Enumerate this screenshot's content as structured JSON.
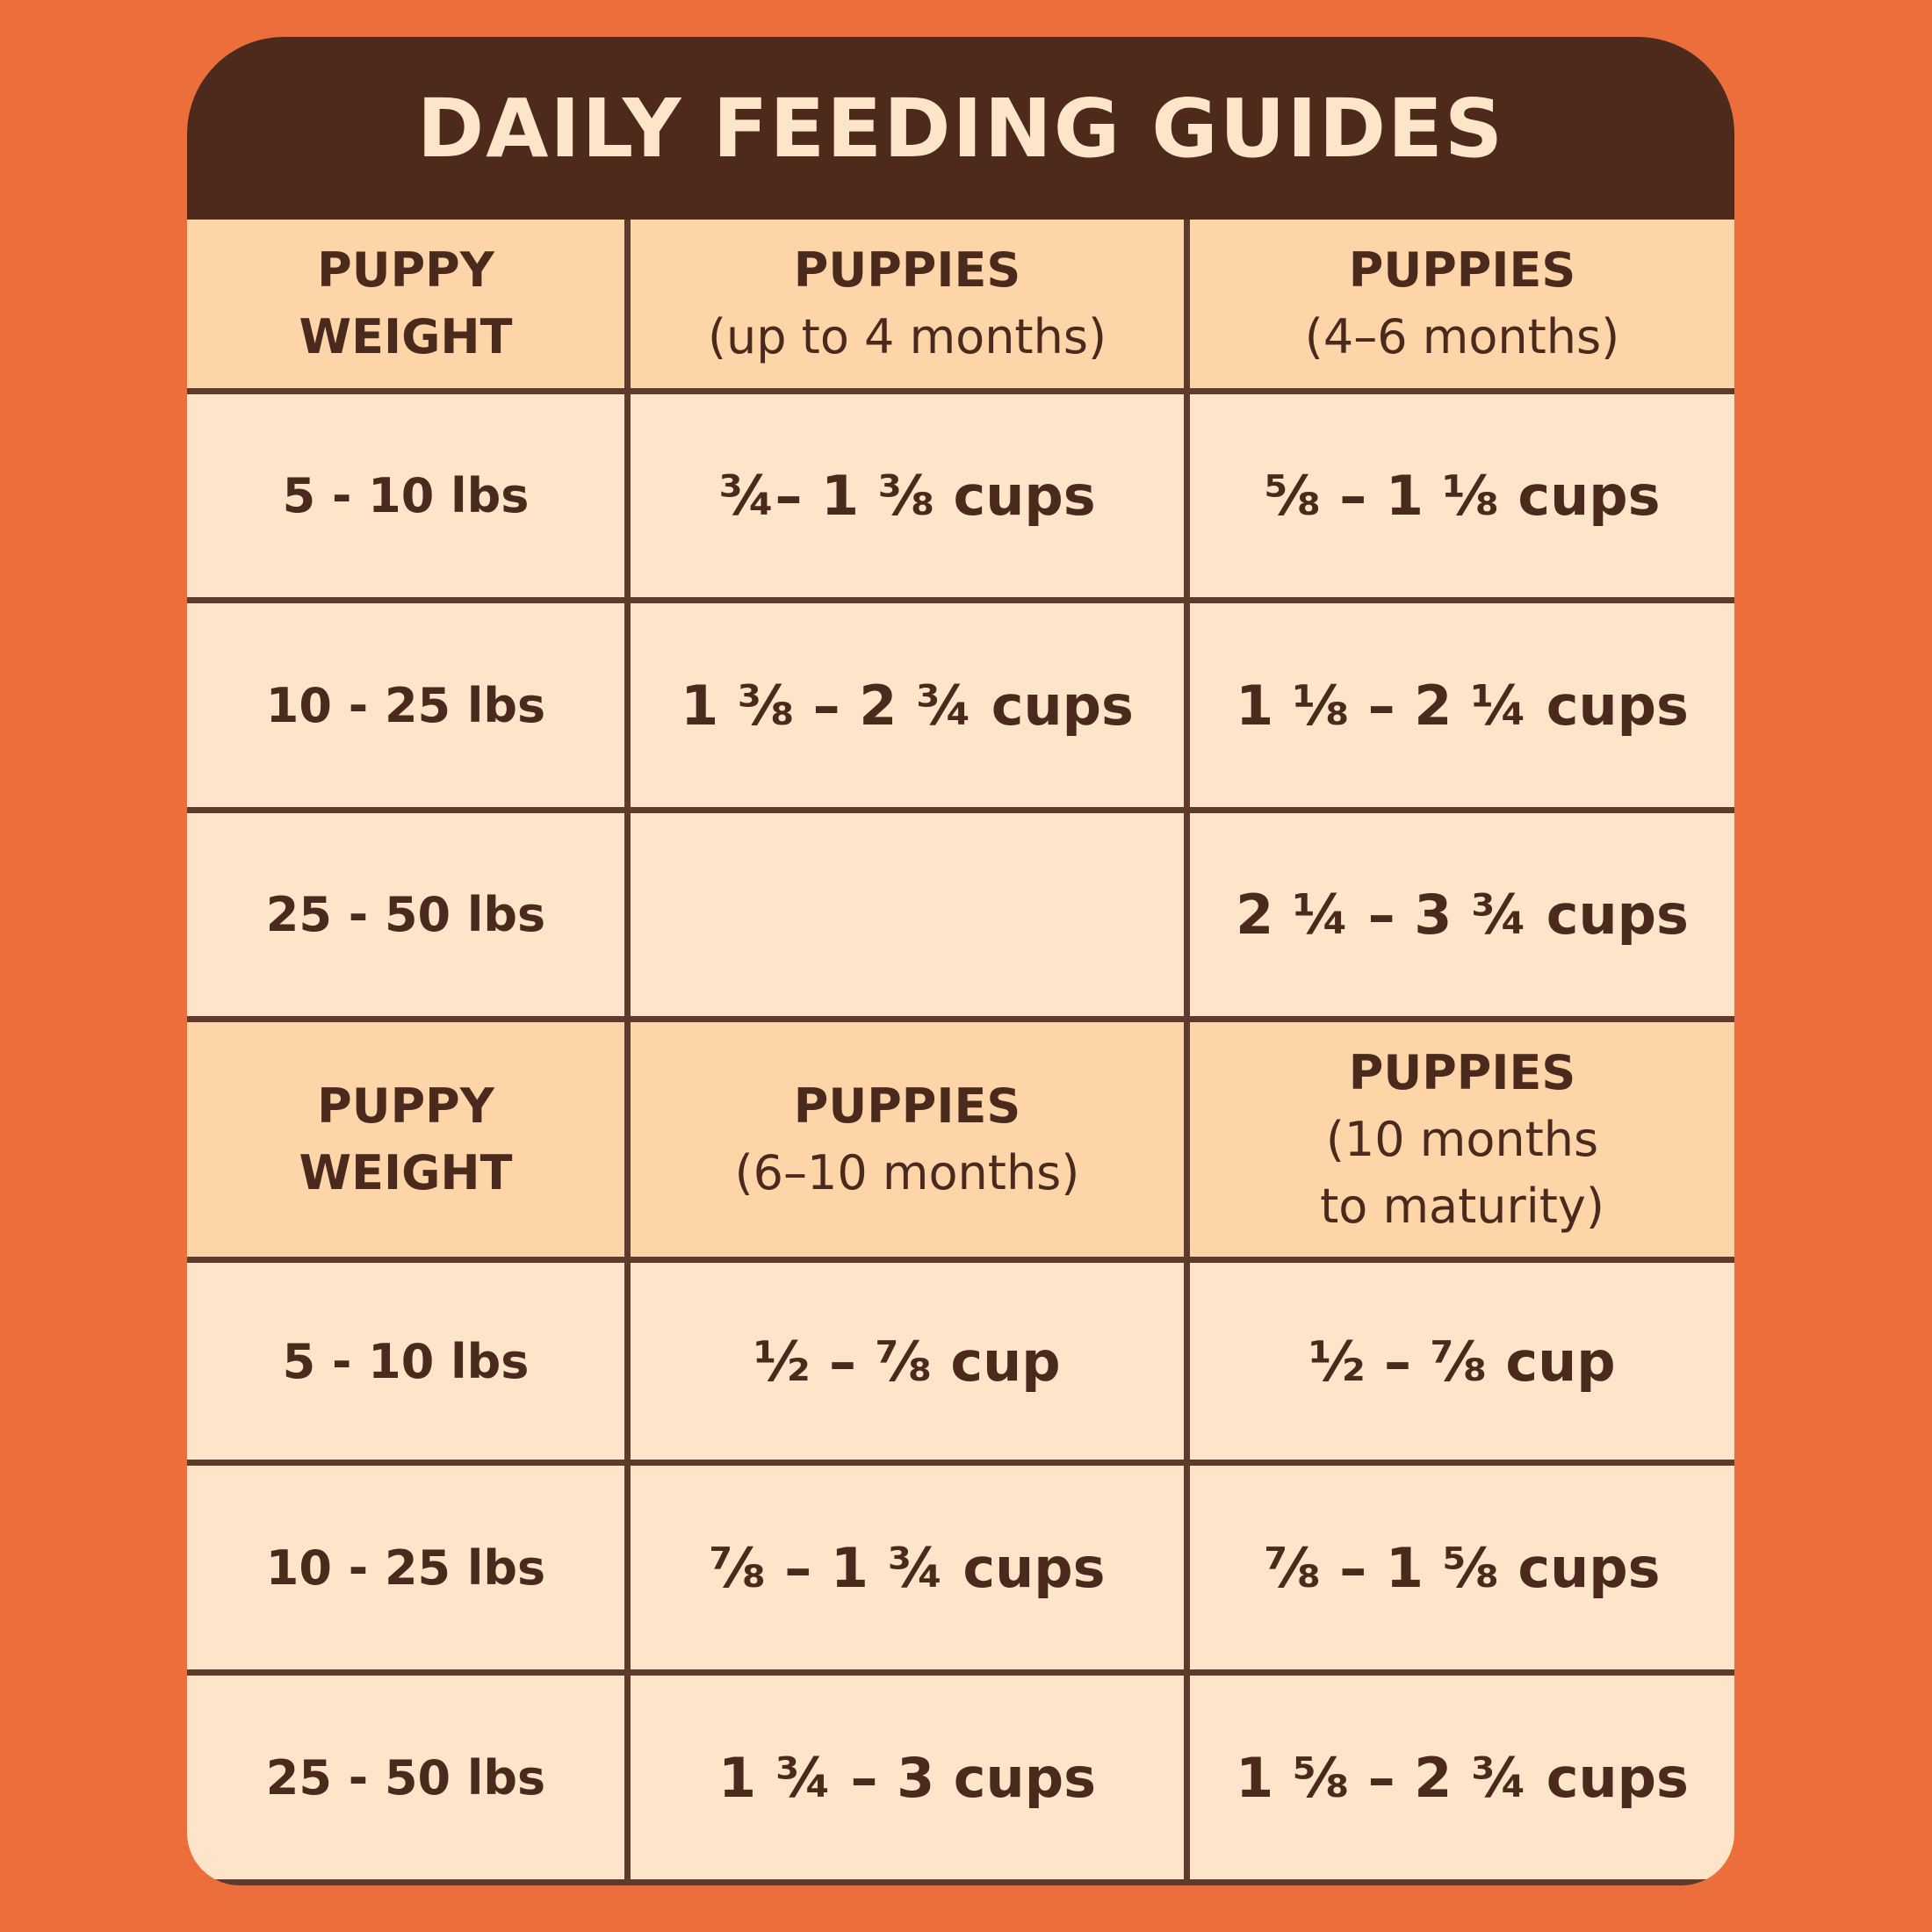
{
  "title": "DAILY FEEDING GUIDES",
  "tables": [
    {
      "header": [
        {
          "title_lines": [
            "PUPPY",
            "WEIGHT"
          ]
        },
        {
          "title_lines": [
            "PUPPIES"
          ],
          "subtitle_lines": [
            "(up to 4 months)"
          ]
        },
        {
          "title_lines": [
            "PUPPIES"
          ],
          "subtitle_lines": [
            "(4–6 months)"
          ]
        }
      ],
      "rows": [
        [
          "5 - 10 lbs",
          "¾– 1 ⅜ cups",
          "⅝ – 1 ⅛ cups"
        ],
        [
          "10 - 25 lbs",
          "1 ⅜ – 2 ¾ cups",
          "1 ⅛ – 2 ¼ cups"
        ],
        [
          "25 - 50 lbs",
          null,
          "2 ¼ – 3 ¾ cups"
        ]
      ]
    },
    {
      "header": [
        {
          "title_lines": [
            "PUPPY",
            "WEIGHT"
          ]
        },
        {
          "title_lines": [
            "PUPPIES"
          ],
          "subtitle_lines": [
            "(6–10 months)"
          ]
        },
        {
          "title_lines": [
            "PUPPIES"
          ],
          "subtitle_lines": [
            "(10 months",
            "to maturity)"
          ]
        }
      ],
      "rows": [
        [
          "5 - 10 lbs",
          "½ – ⅞ cup",
          "½ – ⅞ cup"
        ],
        [
          "10 - 25 lbs",
          "⅞ – 1 ¾ cups",
          "⅞ – 1 ⅝ cups"
        ],
        [
          "25 - 50 lbs",
          "1 ¾ – 3 cups",
          "1 ⅝ – 2 ¾ cups"
        ]
      ]
    }
  ]
}
